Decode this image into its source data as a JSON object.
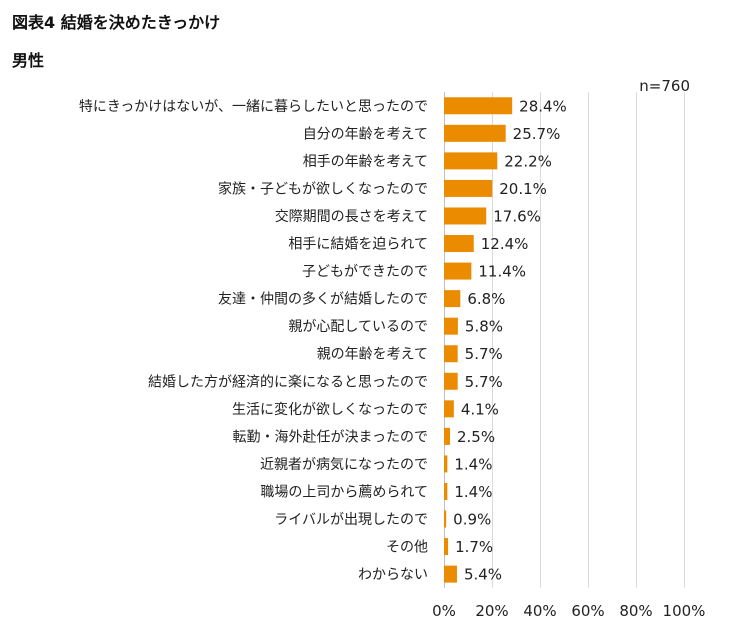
{
  "title": "図表4 結婚を決めたきっかけ",
  "subtitle": "男性",
  "chart_data": {
    "type": "bar",
    "orientation": "horizontal",
    "title": "図表4 結婚を決めたきっかけ",
    "subtitle": "男性",
    "sample_size_label": "n=760",
    "categories": [
      "特にきっかけはないが、一緒に暮らしたいと思ったので",
      "自分の年齢を考えて",
      "相手の年齢を考えて",
      "家族・子どもが欲しくなったので",
      "交際期間の長さを考えて",
      "相手に結婚を迫られて",
      "子どもができたので",
      "友達・仲間の多くが結婚したので",
      "親が心配しているので",
      "親の年齢を考えて",
      "結婚した方が経済的に楽になると思ったので",
      "生活に変化が欲しくなったので",
      "転勤・海外赴任が決まったので",
      "近親者が病気になったので",
      "職場の上司から薦められて",
      "ライバルが出現したので",
      "その他",
      "わからない"
    ],
    "values": [
      28.4,
      25.7,
      22.2,
      20.1,
      17.6,
      12.4,
      11.4,
      6.8,
      5.8,
      5.7,
      5.7,
      4.1,
      2.5,
      1.4,
      1.4,
      0.9,
      1.7,
      5.4
    ],
    "value_labels": [
      "28.4%",
      "25.7%",
      "22.2%",
      "20.1%",
      "17.6%",
      "12.4%",
      "11.4%",
      "6.8%",
      "5.8%",
      "5.7%",
      "5.7%",
      "4.1%",
      "2.5%",
      "1.4%",
      "1.4%",
      "0.9%",
      "1.7%",
      "5.4%"
    ],
    "xlim": [
      0,
      100
    ],
    "x_ticks": [
      0,
      20,
      40,
      60,
      80,
      100
    ],
    "x_tick_labels": [
      "0%",
      "20%",
      "40%",
      "60%",
      "80%",
      "100%"
    ],
    "xlabel": "",
    "ylabel": "",
    "grid": true,
    "legend": "none",
    "bar_color": "#EB8C00",
    "grid_color": "#D9D9D9"
  }
}
